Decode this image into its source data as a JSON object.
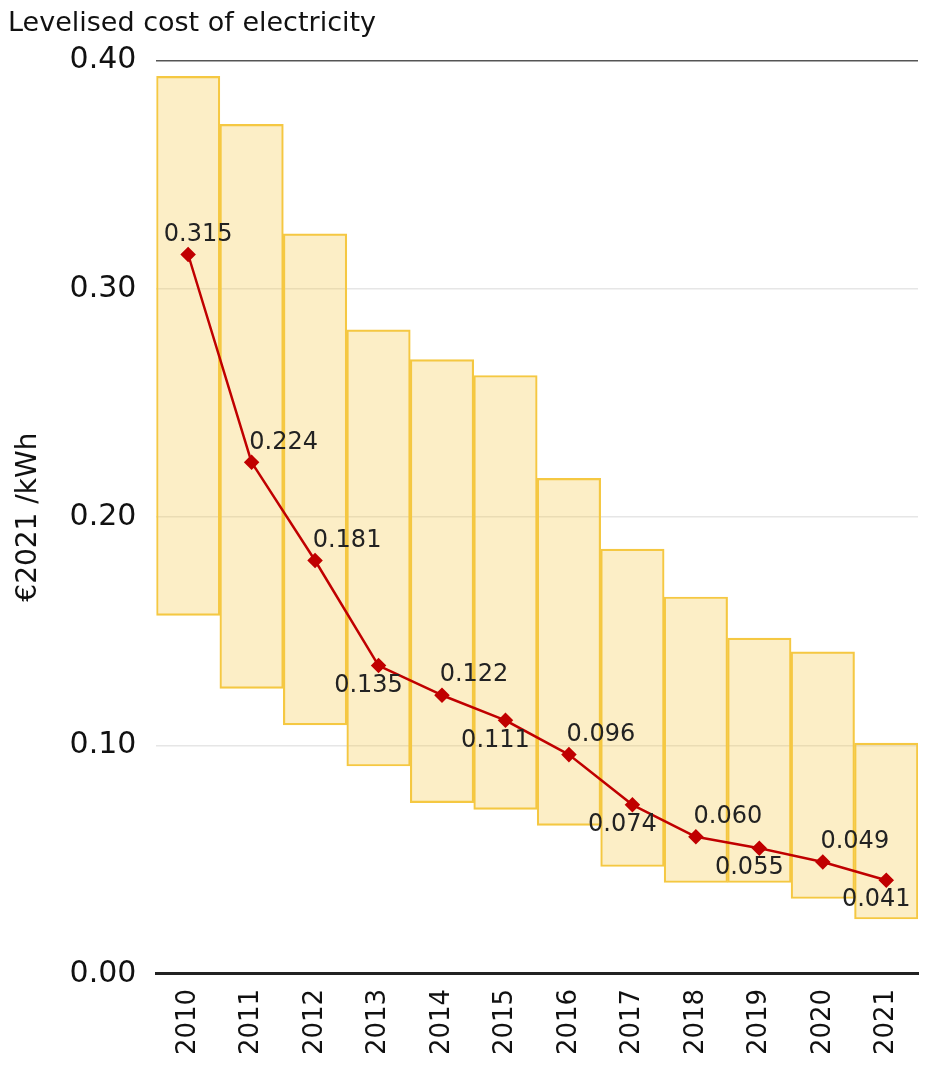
{
  "chart_data": {
    "type": "bar",
    "title": "Levelised cost of electricity",
    "ylabel": "€2021 /kWh",
    "categories": [
      "2010",
      "2011",
      "2012",
      "2013",
      "2014",
      "2015",
      "2016",
      "2017",
      "2018",
      "2019",
      "2020",
      "2021"
    ],
    "series": [
      {
        "color": "#f5c842",
        "base": [
          0.157,
          0.125,
          0.109,
          0.091,
          0.075,
          0.072,
          0.065,
          0.047,
          0.04,
          0.04,
          0.033,
          0.024
        ],
        "values": [
          0.236,
          0.247,
          0.215,
          0.191,
          0.194,
          0.19,
          0.152,
          0.139,
          0.125,
          0.107,
          0.108,
          0.077
        ]
      },
      {
        "type": "line",
        "color": "#c00000",
        "marker": "diamond",
        "values": [
          0.315,
          0.224,
          0.181,
          0.135,
          0.122,
          0.111,
          0.096,
          0.074,
          0.06,
          0.055,
          0.049,
          0.041
        ],
        "value_labels": [
          "0.315",
          "0.224",
          "0.181",
          "0.135",
          "0.122",
          "0.111",
          "0.096",
          "0.074",
          "0.060",
          "0.055",
          "0.049",
          "0.041"
        ]
      }
    ],
    "ylim": [
      0,
      0.4
    ],
    "yticks": [
      {
        "value": 0,
        "label": "0.00"
      },
      {
        "value": 0.1,
        "label": "0.10"
      },
      {
        "value": 0.2,
        "label": "0.20"
      },
      {
        "value": 0.3,
        "label": "0.30"
      },
      {
        "value": 0.4,
        "label": "0.40"
      }
    ],
    "grid": "y",
    "legend": false
  }
}
